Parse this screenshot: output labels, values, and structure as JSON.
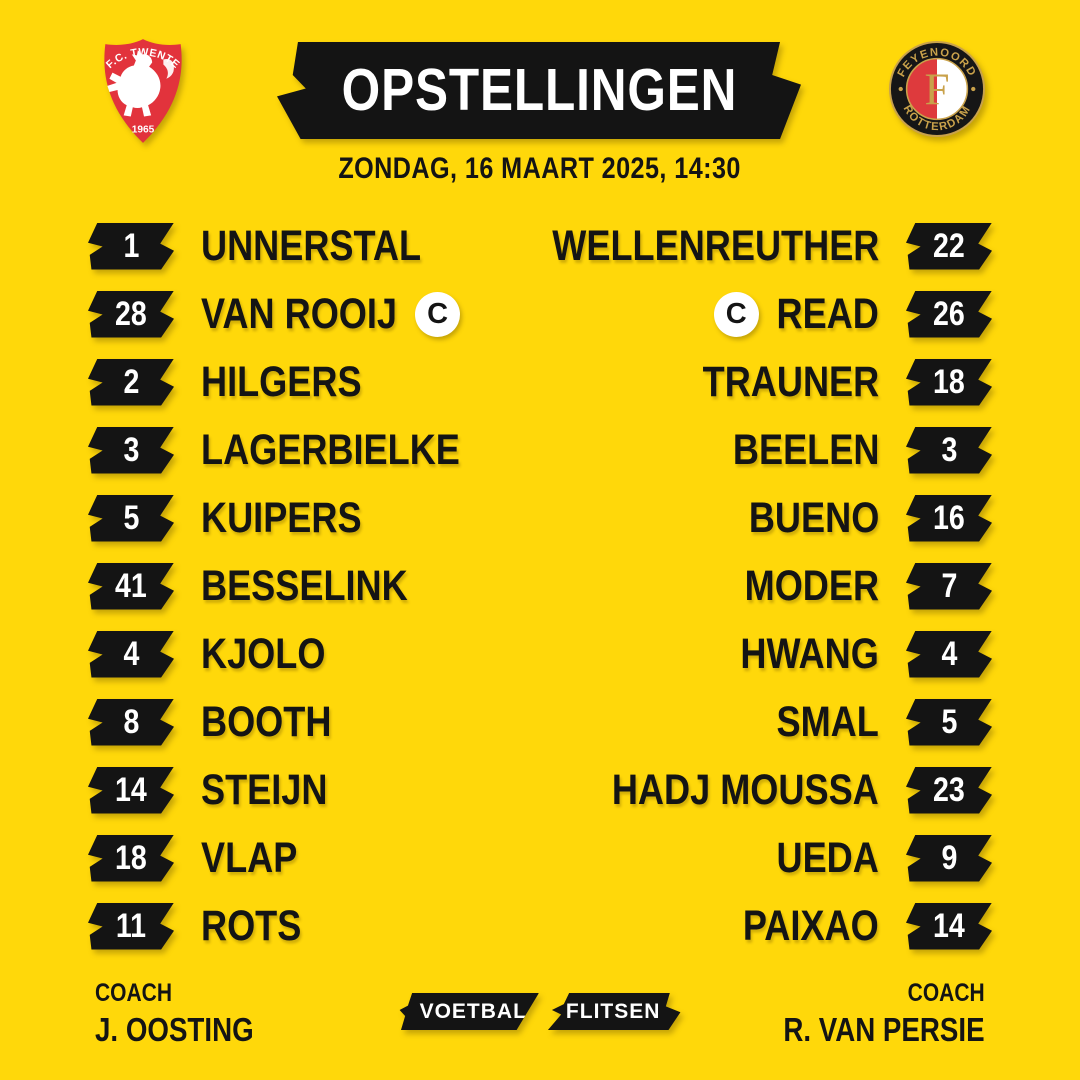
{
  "meta": {
    "title": "OPSTELLINGEN",
    "datetime": "ZONDAG, 16 MAART 2025, 14:30"
  },
  "captain_badge_letter": "C",
  "home": {
    "club": "F.C. TWENTE",
    "founded": "1965",
    "coach_label": "COACH",
    "coach": "J. OOSTING",
    "players": [
      {
        "number": "1",
        "name": "UNNERSTAL",
        "captain": false
      },
      {
        "number": "28",
        "name": "VAN ROOIJ",
        "captain": true
      },
      {
        "number": "2",
        "name": "HILGERS",
        "captain": false
      },
      {
        "number": "3",
        "name": "LAGERBIELKE",
        "captain": false
      },
      {
        "number": "5",
        "name": "KUIPERS",
        "captain": false
      },
      {
        "number": "41",
        "name": "BESSELINK",
        "captain": false
      },
      {
        "number": "4",
        "name": "KJOLO",
        "captain": false
      },
      {
        "number": "8",
        "name": "BOOTH",
        "captain": false
      },
      {
        "number": "14",
        "name": "STEIJN",
        "captain": false
      },
      {
        "number": "18",
        "name": "VLAP",
        "captain": false
      },
      {
        "number": "11",
        "name": "ROTS",
        "captain": false
      }
    ]
  },
  "away": {
    "club_top": "FEYENOORD",
    "club_bottom": "ROTTERDAM",
    "monogram": "F",
    "coach_label": "COACH",
    "coach": "R. VAN PERSIE",
    "players": [
      {
        "number": "22",
        "name": "WELLENREUTHER",
        "captain": false
      },
      {
        "number": "26",
        "name": "READ",
        "captain": true
      },
      {
        "number": "18",
        "name": "TRAUNER",
        "captain": false
      },
      {
        "number": "3",
        "name": "BEELEN",
        "captain": false
      },
      {
        "number": "16",
        "name": "BUENO",
        "captain": false
      },
      {
        "number": "7",
        "name": "MODER",
        "captain": false
      },
      {
        "number": "4",
        "name": "HWANG",
        "captain": false
      },
      {
        "number": "5",
        "name": "SMAL",
        "captain": false
      },
      {
        "number": "23",
        "name": "HADJ MOUSSA",
        "captain": false
      },
      {
        "number": "9",
        "name": "UEDA",
        "captain": false
      },
      {
        "number": "14",
        "name": "PAIXAO",
        "captain": false
      }
    ]
  },
  "brand": {
    "left": "VOETBAL",
    "right": "FLITSEN"
  },
  "colors": {
    "background": "#FFD80A",
    "ink": "#141414",
    "white": "#FFFFFF",
    "twente_red": "#E2333C",
    "feyenoord_gold": "#C9A24B",
    "feyenoord_red": "#DE3A3D"
  }
}
